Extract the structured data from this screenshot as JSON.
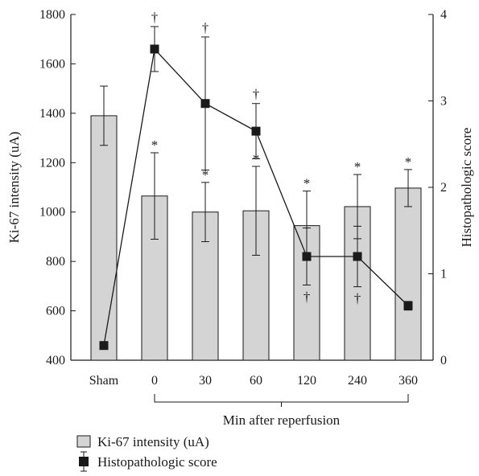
{
  "chart_data": {
    "type": "bar",
    "categories": [
      "Sham",
      "0",
      "30",
      "60",
      "120",
      "240",
      "360"
    ],
    "xlabel": "Min after reperfusion",
    "ylabel": "Ki-67 intensity (uA)",
    "y2label": "Histopathologic score",
    "ylim": [
      400,
      1800
    ],
    "y2lim": [
      0,
      4
    ],
    "yticks": [
      "400",
      "600",
      "800",
      "1000",
      "1200",
      "1400",
      "1600",
      "1800"
    ],
    "y2ticks": [
      "0",
      "1",
      "2",
      "3",
      "4"
    ],
    "grid": false,
    "legend_position": "bottom-left",
    "series": [
      {
        "name": "Ki-67 intensity (uA)",
        "type": "bar",
        "axis": "left",
        "color": "#d4d4d4",
        "values": [
          1390,
          1065,
          1000,
          1005,
          945,
          1022,
          1097
        ],
        "errors": [
          120,
          175,
          120,
          180,
          140,
          130,
          75
        ],
        "markers": [
          "",
          "*",
          "*",
          "*",
          "*",
          "*",
          "*"
        ]
      },
      {
        "name": "Histopathologic score",
        "type": "line",
        "axis": "right",
        "color": "#1a1a1a",
        "values": [
          0.17,
          3.6,
          2.97,
          2.65,
          1.2,
          1.2,
          0.63
        ],
        "errors": [
          0.04,
          0.26,
          0.77,
          0.32,
          0.33,
          0.35,
          0.05
        ],
        "markers": [
          "",
          "†",
          "†",
          "†",
          "†",
          "†",
          ""
        ]
      }
    ]
  }
}
